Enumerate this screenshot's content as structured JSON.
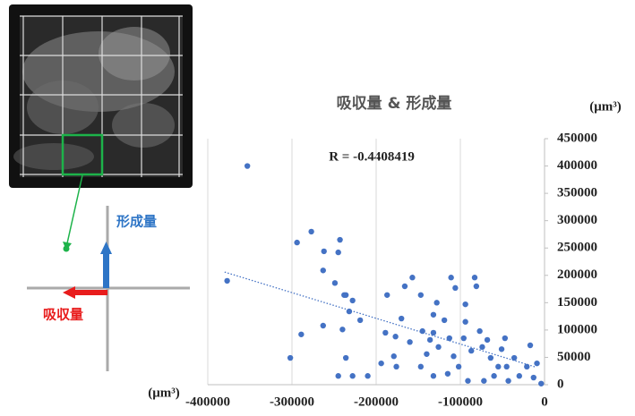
{
  "chart_data": {
    "type": "scatter",
    "title": "吸収量 & 形成量",
    "x_unit_label": "(μm³)",
    "y_unit_label": "(μm³)",
    "annotation": "R = -0.4408419",
    "color": "#4472c4",
    "grid": "x",
    "y_axis_side": "right",
    "xlim": [
      -400000,
      0
    ],
    "xticks": [
      -400000,
      -300000,
      -200000,
      -100000,
      0
    ],
    "ylim": [
      0,
      450000
    ],
    "yticks": [
      0,
      50000,
      100000,
      150000,
      200000,
      250000,
      300000,
      350000,
      400000,
      450000
    ],
    "x": [
      -353000,
      -377000,
      -294000,
      -277000,
      -262000,
      -243000,
      -245000,
      -263000,
      -249000,
      -238000,
      -236000,
      -228000,
      -263000,
      -289000,
      -302000,
      -240000,
      -232000,
      -219000,
      -236000,
      -245000,
      -228000,
      -210000,
      -187000,
      -166000,
      -157000,
      -189000,
      -170000,
      -177000,
      -160000,
      -179000,
      -194000,
      -176000,
      -147000,
      -145000,
      -136000,
      -132000,
      -128000,
      -132000,
      -126000,
      -140000,
      -147000,
      -132000,
      -115000,
      -111000,
      -106000,
      -119000,
      -113000,
      -108000,
      -102000,
      -94000,
      -94000,
      -96000,
      -87000,
      -83000,
      -81000,
      -77000,
      -74000,
      -68000,
      -64000,
      -60000,
      -55000,
      -51000,
      -47000,
      -45000,
      -36000,
      -30000,
      -21000,
      -17000,
      -13000,
      -9000,
      -4000,
      -91000,
      -72000,
      -43000
    ],
    "y": [
      400000,
      190000,
      260000,
      280000,
      244000,
      265000,
      242000,
      209000,
      186000,
      164000,
      164000,
      154000,
      108000,
      92000,
      49000,
      101000,
      134000,
      118000,
      49000,
      16000,
      16000,
      16000,
      164000,
      180000,
      196000,
      95000,
      121000,
      88000,
      78000,
      52000,
      39000,
      33000,
      164000,
      98000,
      82000,
      128000,
      150000,
      95000,
      69000,
      56000,
      33000,
      16000,
      20000,
      196000,
      177000,
      118000,
      85000,
      52000,
      33000,
      147000,
      115000,
      85000,
      62000,
      196000,
      180000,
      98000,
      69000,
      82000,
      49000,
      16000,
      33000,
      65000,
      85000,
      33000,
      49000,
      16000,
      33000,
      72000,
      13000,
      39000,
      2000,
      7000,
      7000,
      7000
    ],
    "trendline": {
      "x": [
        -380000,
        -10000
      ],
      "y": [
        206000,
        32000
      ],
      "color": "#4472c4"
    }
  },
  "diagram": {
    "formation_label": "形成量",
    "resorption_label": "吸収量"
  }
}
